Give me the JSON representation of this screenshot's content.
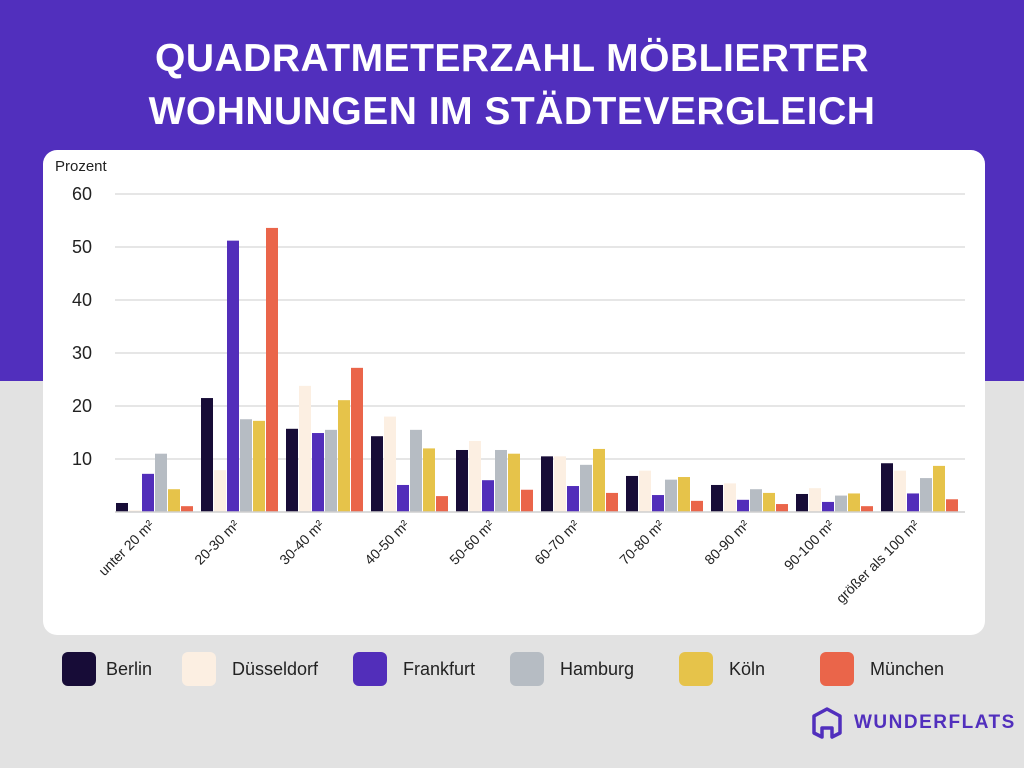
{
  "title_lines": [
    "QUADRATMETERZAHL MÖBLIERTER",
    "WOHNUNGEN IM STÄDTEVERGLEICH"
  ],
  "brand": "WUNDERFLATS",
  "colors": {
    "background_top": "#512fbd",
    "background_bottom": "#e2e2e2",
    "brand": "#512fbd"
  },
  "chart_data": {
    "type": "bar",
    "title": "Quadratmeterzahl möblierter Wohnungen im Städtevergleich",
    "ylabel": "Prozent",
    "xlabel": "",
    "ylim": [
      0,
      60
    ],
    "yticks": [
      10,
      20,
      30,
      40,
      50,
      60
    ],
    "grid": true,
    "legend_position": "bottom",
    "categories": [
      "unter 20 m²",
      "20-30 m²",
      "30-40 m²",
      "40-50 m²",
      "50-60 m²",
      "60-70 m²",
      "70-80 m²",
      "80-90 m²",
      "90-100 m²",
      "größer als 100 m²"
    ],
    "series": [
      {
        "name": "Berlin",
        "color": "#170c37",
        "values": [
          1.7,
          21.5,
          15.7,
          14.3,
          11.7,
          10.5,
          6.8,
          5.1,
          3.4,
          9.2
        ]
      },
      {
        "name": "Düsseldorf",
        "color": "#fcefe2",
        "values": [
          0.3,
          7.9,
          23.8,
          18.0,
          13.4,
          10.5,
          7.8,
          5.4,
          4.5,
          7.8
        ]
      },
      {
        "name": "Frankfurt",
        "color": "#522eba",
        "values": [
          7.2,
          51.2,
          14.9,
          5.1,
          6.0,
          4.9,
          3.2,
          2.3,
          1.9,
          3.5
        ]
      },
      {
        "name": "Hamburg",
        "color": "#b6bcc3",
        "values": [
          11.0,
          17.5,
          15.5,
          15.5,
          11.7,
          8.9,
          6.1,
          4.3,
          3.1,
          6.4
        ]
      },
      {
        "name": "Köln",
        "color": "#e6c34a",
        "values": [
          4.3,
          17.2,
          21.1,
          12.0,
          11.0,
          11.9,
          6.6,
          3.6,
          3.5,
          8.7
        ]
      },
      {
        "name": "München",
        "color": "#ea654a",
        "values": [
          1.1,
          53.6,
          27.2,
          3.0,
          4.2,
          3.6,
          2.1,
          1.5,
          1.1,
          2.4
        ]
      }
    ]
  }
}
